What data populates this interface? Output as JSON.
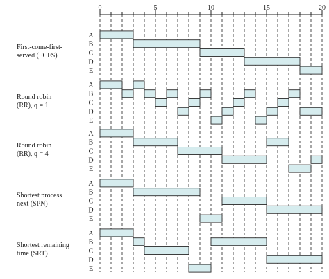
{
  "axis": {
    "min": 0,
    "max": 20,
    "tick_labels": [
      "0",
      "5",
      "10",
      "15",
      "20"
    ]
  },
  "colors": {
    "bar_fill": "#d6ecee",
    "bar_stroke": "#2b2b2b",
    "grid": "#222222",
    "text": "#222222"
  },
  "policies": [
    {
      "label": "First-come-first-\nserved (FCFS)",
      "rows": [
        {
          "process": "A",
          "segments": [
            [
              0,
              3
            ]
          ]
        },
        {
          "process": "B",
          "segments": [
            [
              3,
              9
            ]
          ]
        },
        {
          "process": "C",
          "segments": [
            [
              9,
              13
            ]
          ]
        },
        {
          "process": "D",
          "segments": [
            [
              13,
              18
            ]
          ]
        },
        {
          "process": "E",
          "segments": [
            [
              18,
              20
            ]
          ]
        }
      ]
    },
    {
      "label": "Round robin\n(RR), q = 1",
      "rows": [
        {
          "process": "A",
          "segments": [
            [
              0,
              2
            ],
            [
              3,
              4
            ]
          ]
        },
        {
          "process": "B",
          "segments": [
            [
              2,
              3
            ],
            [
              4,
              5
            ],
            [
              6,
              7
            ],
            [
              9,
              10
            ],
            [
              13,
              14
            ],
            [
              17,
              18
            ]
          ]
        },
        {
          "process": "C",
          "segments": [
            [
              5,
              6
            ],
            [
              8,
              9
            ],
            [
              12,
              13
            ],
            [
              16,
              17
            ]
          ]
        },
        {
          "process": "D",
          "segments": [
            [
              7,
              8
            ],
            [
              11,
              12
            ],
            [
              15,
              16
            ],
            [
              18,
              20
            ]
          ]
        },
        {
          "process": "E",
          "segments": [
            [
              10,
              11
            ],
            [
              14,
              15
            ]
          ]
        }
      ]
    },
    {
      "label": "Round robin\n(RR), q = 4",
      "rows": [
        {
          "process": "A",
          "segments": [
            [
              0,
              3
            ]
          ]
        },
        {
          "process": "B",
          "segments": [
            [
              3,
              7
            ],
            [
              15,
              17
            ]
          ]
        },
        {
          "process": "C",
          "segments": [
            [
              7,
              11
            ]
          ]
        },
        {
          "process": "D",
          "segments": [
            [
              11,
              15
            ],
            [
              19,
              20
            ]
          ]
        },
        {
          "process": "E",
          "segments": [
            [
              17,
              19
            ]
          ]
        }
      ]
    },
    {
      "label": "Shortest process\nnext (SPN)",
      "rows": [
        {
          "process": "A",
          "segments": [
            [
              0,
              3
            ]
          ]
        },
        {
          "process": "B",
          "segments": [
            [
              3,
              9
            ]
          ]
        },
        {
          "process": "C",
          "segments": [
            [
              11,
              15
            ]
          ]
        },
        {
          "process": "D",
          "segments": [
            [
              15,
              20
            ]
          ]
        },
        {
          "process": "E",
          "segments": [
            [
              9,
              11
            ]
          ]
        }
      ]
    },
    {
      "label": "Shortest remaining\ntime (SRT)",
      "rows": [
        {
          "process": "A",
          "segments": [
            [
              0,
              3
            ]
          ]
        },
        {
          "process": "B",
          "segments": [
            [
              3,
              4
            ],
            [
              10,
              15
            ]
          ]
        },
        {
          "process": "C",
          "segments": [
            [
              4,
              8
            ]
          ]
        },
        {
          "process": "D",
          "segments": [
            [
              15,
              20
            ]
          ]
        },
        {
          "process": "E",
          "segments": [
            [
              8,
              10
            ]
          ]
        }
      ]
    }
  ]
}
